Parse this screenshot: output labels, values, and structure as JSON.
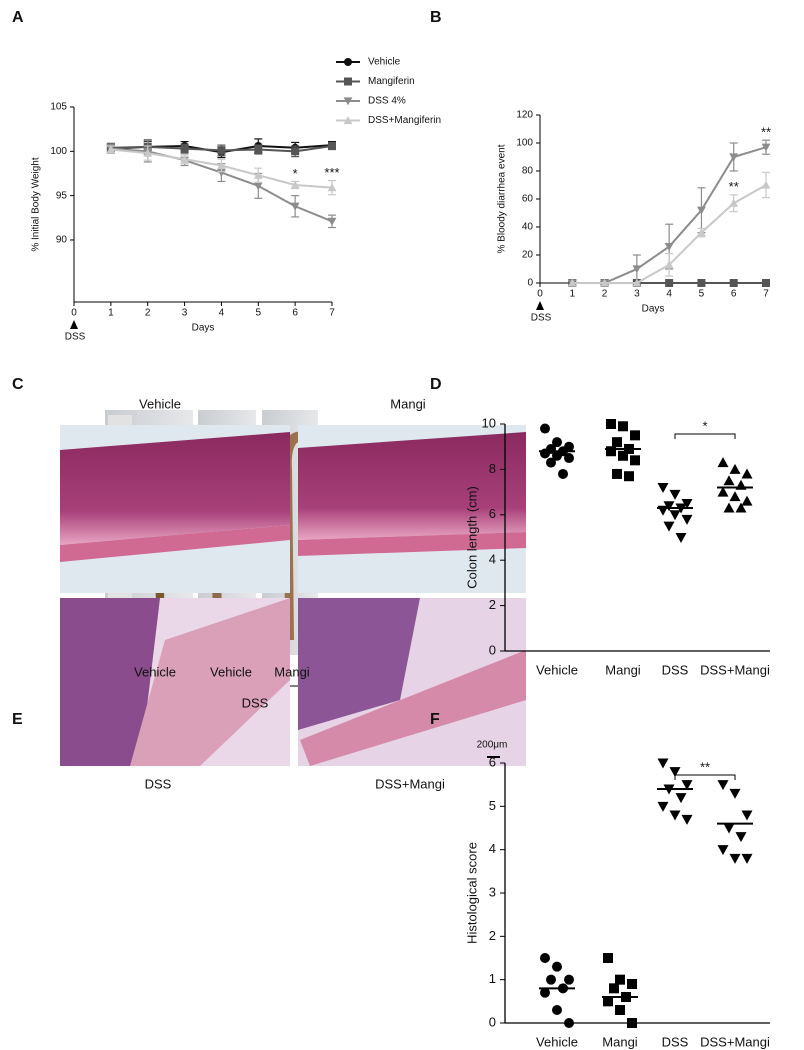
{
  "panels": [
    "A",
    "B",
    "C",
    "D",
    "E",
    "F"
  ],
  "chart_data": [
    {
      "type": "line",
      "ylabel": "% Initial Body Weight",
      "xlabel": "Days",
      "start_label": "DSS",
      "x": [
        1,
        2,
        3,
        4,
        5,
        6,
        7
      ],
      "xlim": [
        0,
        7
      ],
      "xticks": [
        0,
        1,
        2,
        3,
        4,
        5,
        6,
        7
      ],
      "ylim": [
        83,
        105
      ],
      "yticks": [
        90,
        95,
        100,
        105
      ],
      "legend": "upper right",
      "series": [
        {
          "name": "Vehicle",
          "color": "#111111",
          "marker": "circle",
          "values": [
            100.3,
            100.5,
            100.6,
            99.9,
            100.6,
            100.4,
            100.7
          ],
          "errors": [
            0.5,
            0.6,
            0.5,
            0.6,
            0.8,
            0.6,
            0.4
          ]
        },
        {
          "name": "Mangiferin",
          "color": "#555555",
          "marker": "square",
          "values": [
            100.4,
            100.5,
            100.3,
            100.1,
            100.2,
            100.0,
            100.6
          ],
          "errors": [
            0.5,
            0.8,
            0.5,
            0.6,
            0.5,
            0.6,
            0.4
          ]
        },
        {
          "name": "DSS 4%",
          "color": "#8c8c8c",
          "marker": "triangle-down",
          "values": [
            100.3,
            100.0,
            99.0,
            97.6,
            96.1,
            93.8,
            92.1
          ],
          "errors": [
            0.5,
            1.2,
            0.6,
            1.0,
            1.4,
            1.2,
            0.7
          ]
        },
        {
          "name": "DSS+Mangiferin",
          "color": "#c8c8c8",
          "marker": "triangle-up",
          "values": [
            100.2,
            99.8,
            99.1,
            98.4,
            97.3,
            96.2,
            95.9
          ],
          "errors": [
            0.4,
            0.8,
            0.5,
            0.7,
            0.8,
            0.4,
            0.8
          ]
        }
      ],
      "annotations": [
        "*",
        "***"
      ]
    },
    {
      "type": "line",
      "ylabel": "% Bloody diarrhea event",
      "xlabel": "Days",
      "start_label": "DSS",
      "x": [
        1,
        2,
        3,
        4,
        5,
        6,
        7
      ],
      "xlim": [
        0,
        7
      ],
      "xticks": [
        0,
        1,
        2,
        3,
        4,
        5,
        6,
        7
      ],
      "ylim": [
        0,
        120
      ],
      "yticks": [
        0,
        20,
        40,
        60,
        80,
        100,
        120
      ],
      "series": [
        {
          "color": "#111111",
          "marker": "circle",
          "values": [
            0,
            0,
            0,
            0,
            0,
            0,
            0
          ],
          "errors": [
            0,
            0,
            0,
            0,
            0,
            0,
            0
          ]
        },
        {
          "color": "#555555",
          "marker": "square",
          "values": [
            0,
            0,
            0,
            0,
            0,
            0,
            0
          ],
          "errors": [
            0,
            0,
            0,
            0,
            0,
            0,
            0
          ]
        },
        {
          "color": "#8c8c8c",
          "marker": "triangle-down",
          "values": [
            0,
            0,
            10,
            26,
            52,
            90,
            97
          ],
          "errors": [
            0,
            0,
            10,
            16,
            16,
            10,
            5
          ]
        },
        {
          "color": "#c8c8c8",
          "marker": "triangle-up",
          "values": [
            0,
            0,
            0,
            13,
            36,
            57,
            70
          ],
          "errors": [
            0,
            0,
            0,
            8,
            3,
            6,
            9
          ]
        }
      ],
      "annotations": [
        "**",
        "**"
      ]
    },
    {
      "type": "dot",
      "ylabel": "Colon length (cm)",
      "categories": [
        "Vehicle",
        "Mangi",
        "DSS",
        "DSS+Mangi"
      ],
      "markers": [
        "circle",
        "square",
        "triangle-down",
        "triangle-up"
      ],
      "color": "#000000",
      "ylim": [
        0,
        10
      ],
      "yticks": [
        0,
        2,
        4,
        6,
        8,
        10
      ],
      "values": [
        [
          9.8,
          9.2,
          9.0,
          8.9,
          8.8,
          8.7,
          8.6,
          8.5,
          8.3,
          7.8
        ],
        [
          10.0,
          9.9,
          9.5,
          9.2,
          8.9,
          8.8,
          8.6,
          8.4,
          7.8,
          7.7
        ],
        [
          7.2,
          6.9,
          6.5,
          6.4,
          6.3,
          6.2,
          6.0,
          5.8,
          5.5,
          5.0
        ],
        [
          8.3,
          8.0,
          7.8,
          7.5,
          7.3,
          7.0,
          6.8,
          6.6,
          6.3,
          6.3
        ]
      ],
      "means": [
        8.8,
        8.9,
        6.3,
        7.2
      ],
      "significance": "*"
    },
    {
      "type": "dot",
      "ylabel": "Histological score",
      "categories": [
        "Vehicle",
        "Mangi",
        "DSS",
        "DSS+Mangi"
      ],
      "markers": [
        "circle",
        "square",
        "triangle-down",
        "triangle-down"
      ],
      "color": "#000000",
      "ylim": [
        0,
        6
      ],
      "yticks": [
        0,
        1,
        2,
        3,
        4,
        5,
        6
      ],
      "values": [
        [
          1.5,
          1.3,
          1.0,
          1.0,
          0.8,
          0.7,
          0.3,
          0.0
        ],
        [
          1.5,
          1.0,
          0.9,
          0.8,
          0.6,
          0.5,
          0.3,
          0.0
        ],
        [
          6.0,
          5.8,
          5.5,
          5.4,
          5.2,
          5.0,
          4.8,
          4.7
        ],
        [
          5.5,
          5.3,
          4.8,
          4.5,
          4.3,
          4.0,
          3.8,
          3.8
        ]
      ],
      "means": [
        0.8,
        0.6,
        5.4,
        4.6
      ],
      "significance": "**"
    }
  ],
  "photo_c": {
    "labels": [
      "Vehicle",
      "Vehicle",
      "Mangi"
    ],
    "group": "DSS"
  },
  "photo_e": {
    "labels": [
      "Vehicle",
      "Mangi",
      "DSS",
      "DSS+Mangi"
    ],
    "scale": "200μm"
  }
}
